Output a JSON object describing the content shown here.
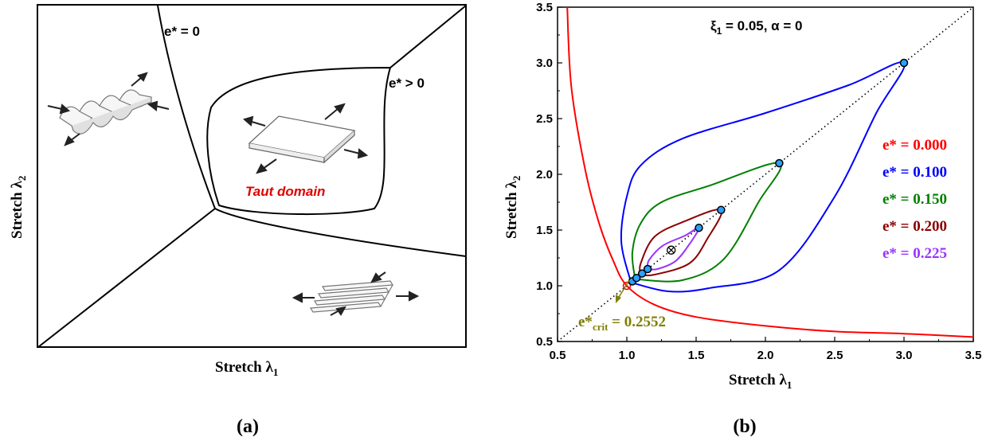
{
  "panel_a": {
    "caption": "(a)",
    "xlabel": "Stretch λ",
    "xlabel_sub": "1",
    "ylabel": "Stretch λ",
    "ylabel_sub": "2",
    "label_e0": "e* = 0",
    "label_epos": "e* > 0",
    "taut_label": "Taut domain",
    "taut_color": "#e00000"
  },
  "panel_b": {
    "caption": "(b)",
    "title_xi": "ξ",
    "title_xi_sub": "1",
    "title_rest": " = 0.05, α = 0",
    "crit_label_main": "e*",
    "crit_label_sub": "crit",
    "crit_label_val": " = 0.2552",
    "crit_color": "#7f7f00"
  },
  "chart_data": {
    "type": "line",
    "title": "ξ1 = 0.05, α = 0",
    "xlabel": "Stretch λ1",
    "ylabel": "Stretch λ2",
    "xlim": [
      0.5,
      3.5
    ],
    "ylim": [
      0.5,
      3.5
    ],
    "xticks": [
      "0.5",
      "1.0",
      "1.5",
      "2.0",
      "2.5",
      "3.0",
      "3.5"
    ],
    "yticks": [
      "0.5",
      "1.0",
      "1.5",
      "2.0",
      "2.5",
      "3.0",
      "3.5"
    ],
    "legend_position": "right",
    "series": [
      {
        "name": "e* = 0.000",
        "color": "#ff0000",
        "kind": "hyperbola",
        "points": [
          [
            0.57,
            3.5
          ],
          [
            0.6,
            2.78
          ],
          [
            0.7,
            2.04
          ],
          [
            0.8,
            1.56
          ],
          [
            0.9,
            1.23
          ],
          [
            1.0,
            1.0
          ],
          [
            1.2,
            0.83
          ],
          [
            1.5,
            0.72
          ],
          [
            2.0,
            0.64
          ],
          [
            2.5,
            0.59
          ],
          [
            3.0,
            0.57
          ],
          [
            3.5,
            0.54
          ]
        ]
      },
      {
        "name": "e* = 0.100",
        "color": "#0000ff",
        "kind": "loop",
        "end": 3.0,
        "points": [
          [
            1.03,
            1.03
          ],
          [
            0.96,
            1.4
          ],
          [
            1.0,
            1.8
          ],
          [
            1.1,
            2.08
          ],
          [
            1.4,
            2.32
          ],
          [
            2.0,
            2.55
          ],
          [
            2.6,
            2.8
          ],
          [
            3.0,
            3.0
          ],
          [
            2.8,
            2.55
          ],
          [
            2.5,
            1.8
          ],
          [
            2.1,
            1.14
          ],
          [
            1.6,
            0.98
          ],
          [
            1.3,
            0.95
          ],
          [
            1.03,
            1.03
          ]
        ]
      },
      {
        "name": "e* = 0.150",
        "color": "#008000",
        "kind": "loop",
        "end": 2.1,
        "points": [
          [
            1.06,
            1.06
          ],
          [
            1.04,
            1.3
          ],
          [
            1.1,
            1.56
          ],
          [
            1.25,
            1.75
          ],
          [
            1.6,
            1.9
          ],
          [
            2.1,
            2.1
          ],
          [
            1.95,
            1.75
          ],
          [
            1.7,
            1.24
          ],
          [
            1.4,
            1.05
          ],
          [
            1.06,
            1.06
          ]
        ]
      },
      {
        "name": "e* = 0.200",
        "color": "#8b0000",
        "kind": "loop",
        "end": 1.68,
        "points": [
          [
            1.1,
            1.1
          ],
          [
            1.1,
            1.2
          ],
          [
            1.2,
            1.44
          ],
          [
            1.42,
            1.58
          ],
          [
            1.68,
            1.68
          ],
          [
            1.58,
            1.42
          ],
          [
            1.45,
            1.2
          ],
          [
            1.2,
            1.1
          ],
          [
            1.1,
            1.1
          ]
        ]
      },
      {
        "name": "e* = 0.225",
        "color": "#9933ff",
        "kind": "loop",
        "end": 1.52,
        "points": [
          [
            1.15,
            1.15
          ],
          [
            1.16,
            1.23
          ],
          [
            1.26,
            1.36
          ],
          [
            1.42,
            1.45
          ],
          [
            1.52,
            1.52
          ],
          [
            1.45,
            1.37
          ],
          [
            1.35,
            1.22
          ],
          [
            1.22,
            1.15
          ],
          [
            1.15,
            1.15
          ]
        ]
      }
    ],
    "markers": [
      {
        "x": 1.0,
        "y": 1.0,
        "color": "#ff0000"
      },
      {
        "x": 1.04,
        "y": 1.04,
        "color": "#2aa0ff"
      },
      {
        "x": 1.07,
        "y": 1.07,
        "color": "#2aa0ff"
      },
      {
        "x": 1.11,
        "y": 1.11,
        "color": "#2aa0ff"
      },
      {
        "x": 1.15,
        "y": 1.15,
        "color": "#2aa0ff"
      },
      {
        "x": 1.52,
        "y": 1.52,
        "color": "#2aa0ff"
      },
      {
        "x": 1.68,
        "y": 1.68,
        "color": "#2aa0ff"
      },
      {
        "x": 2.1,
        "y": 2.1,
        "color": "#2aa0ff"
      },
      {
        "x": 3.0,
        "y": 3.0,
        "color": "#2aa0ff"
      }
    ],
    "critical_point": {
      "x": 1.32,
      "y": 1.32,
      "label": "e*crit = 0.2552"
    },
    "diagonal": {
      "from": [
        0.5,
        0.5
      ],
      "to": [
        3.5,
        3.5
      ],
      "style": "dotted"
    }
  }
}
